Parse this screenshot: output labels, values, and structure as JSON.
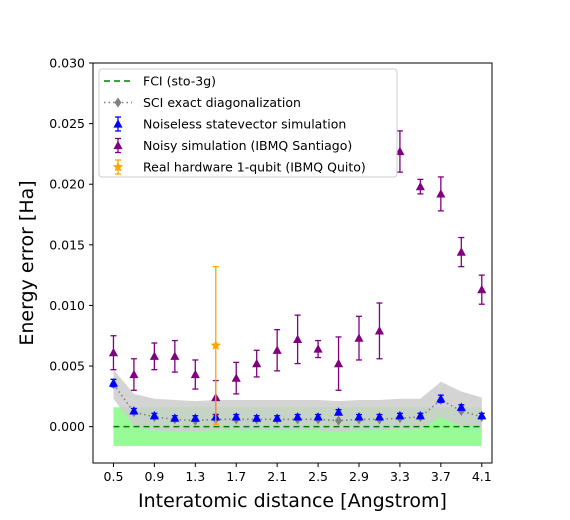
{
  "chart_data": {
    "type": "scatter",
    "xlabel": "Interatomic distance [Angstrom]",
    "ylabel": "Energy error [Ha]",
    "xlim": [
      0.3,
      4.2
    ],
    "ylim": [
      -0.003,
      0.03
    ],
    "x_ticks": [
      0.5,
      0.9,
      1.3,
      1.7,
      2.1,
      2.5,
      2.9,
      3.3,
      3.7,
      4.1
    ],
    "x_tick_labels": [
      "0.5",
      "0.9",
      "1.3",
      "1.7",
      "2.1",
      "2.5",
      "2.9",
      "3.3",
      "3.7",
      "4.1"
    ],
    "y_ticks": [
      0.0,
      0.005,
      0.01,
      0.015,
      0.02,
      0.025,
      0.03
    ],
    "y_tick_labels": [
      "0.000",
      "0.005",
      "0.010",
      "0.015",
      "0.020",
      "0.025",
      "0.030"
    ],
    "legend_position": "top-left",
    "chemical_accuracy_band": {
      "x_range": [
        0.5,
        4.1
      ],
      "y_range": [
        -0.0016,
        0.0016
      ],
      "color": "#98fb98"
    },
    "series": [
      {
        "name": "FCI (sto-3g)",
        "kind": "dashed-line",
        "color": "#008000",
        "x": [
          0.5,
          4.1
        ],
        "y": [
          0.0,
          0.0
        ]
      },
      {
        "name": "SCI exact diagonalization",
        "kind": "dotted-line-diamond",
        "color": "#808080",
        "x": [
          0.5,
          0.7,
          0.9,
          1.1,
          1.3,
          1.5,
          1.7,
          1.9,
          2.1,
          2.3,
          2.5,
          2.7,
          2.9,
          3.1,
          3.3,
          3.5,
          3.7,
          3.9,
          4.1
        ],
        "y": [
          0.0035,
          0.0012,
          0.0008,
          0.0006,
          0.0005,
          0.0006,
          0.0006,
          0.0006,
          0.0006,
          0.0006,
          0.0006,
          0.0005,
          0.0006,
          0.0006,
          0.0007,
          0.0008,
          0.0022,
          0.0013,
          0.0008
        ]
      },
      {
        "name": "Noiseless statevector simulation",
        "kind": "errorbar-triangle",
        "color": "#0000ff",
        "x": [
          0.5,
          0.7,
          0.9,
          1.1,
          1.3,
          1.5,
          1.7,
          1.9,
          2.1,
          2.3,
          2.5,
          2.7,
          2.9,
          3.1,
          3.3,
          3.5,
          3.7,
          3.9,
          4.1
        ],
        "y": [
          0.0036,
          0.0013,
          0.0009,
          0.0007,
          0.0007,
          0.0008,
          0.0008,
          0.0007,
          0.0007,
          0.0008,
          0.0008,
          0.0012,
          0.0008,
          0.0008,
          0.0009,
          0.0009,
          0.0023,
          0.0016,
          0.0009
        ],
        "err": [
          0.0003,
          0.0002,
          0.0002,
          0.0002,
          0.0002,
          0.0002,
          0.0002,
          0.0002,
          0.0002,
          0.0002,
          0.0002,
          0.0002,
          0.0002,
          0.0002,
          0.0002,
          0.0002,
          0.0003,
          0.0002,
          0.0002
        ]
      },
      {
        "name": "Noisy simulation (IBMQ Santiago)",
        "kind": "errorbar-triangle",
        "color": "#800080",
        "x": [
          0.5,
          0.7,
          0.9,
          1.1,
          1.3,
          1.5,
          1.7,
          1.9,
          2.1,
          2.3,
          2.5,
          2.7,
          2.9,
          3.1,
          3.3,
          3.5,
          3.7,
          3.9,
          4.1
        ],
        "y": [
          0.0061,
          0.0043,
          0.0058,
          0.0058,
          0.0043,
          0.0024,
          0.004,
          0.0052,
          0.0063,
          0.0072,
          0.0064,
          0.0052,
          0.0073,
          0.0079,
          0.0227,
          0.0198,
          0.0192,
          0.0144,
          0.0113
        ],
        "err": [
          0.0014,
          0.0013,
          0.0011,
          0.0013,
          0.0012,
          0.0014,
          0.0013,
          0.0011,
          0.0017,
          0.002,
          0.0007,
          0.0022,
          0.0018,
          0.0023,
          0.0017,
          0.0006,
          0.0014,
          0.0012,
          0.0012
        ]
      },
      {
        "name": "Real hardware 1-qubit (IBMQ Quito)",
        "kind": "errorbar-star",
        "color": "#ffa500",
        "x": [
          1.5
        ],
        "y": [
          0.0067
        ],
        "err": [
          0.0065
        ]
      }
    ],
    "shaded_region": {
      "color": "#cccccc",
      "x": [
        0.5,
        0.7,
        0.9,
        1.1,
        1.3,
        1.5,
        1.7,
        1.9,
        2.1,
        2.3,
        2.5,
        2.7,
        2.9,
        3.1,
        3.3,
        3.5,
        3.7,
        3.9,
        4.1
      ],
      "upper": [
        0.0047,
        0.0027,
        0.0023,
        0.0022,
        0.0021,
        0.0022,
        0.0022,
        0.0022,
        0.0022,
        0.0022,
        0.0022,
        0.0021,
        0.0022,
        0.0022,
        0.0023,
        0.0023,
        0.0037,
        0.0029,
        0.0024
      ],
      "lower": [
        0.0023,
        0.0,
        -0.0003,
        -0.0004,
        -0.0004,
        -0.0003,
        -0.0003,
        -0.0003,
        -0.0003,
        -0.0003,
        -0.0003,
        -0.0004,
        -0.0003,
        -0.0003,
        -0.0002,
        -0.0002,
        0.0008,
        0.0,
        -0.0002
      ]
    }
  }
}
